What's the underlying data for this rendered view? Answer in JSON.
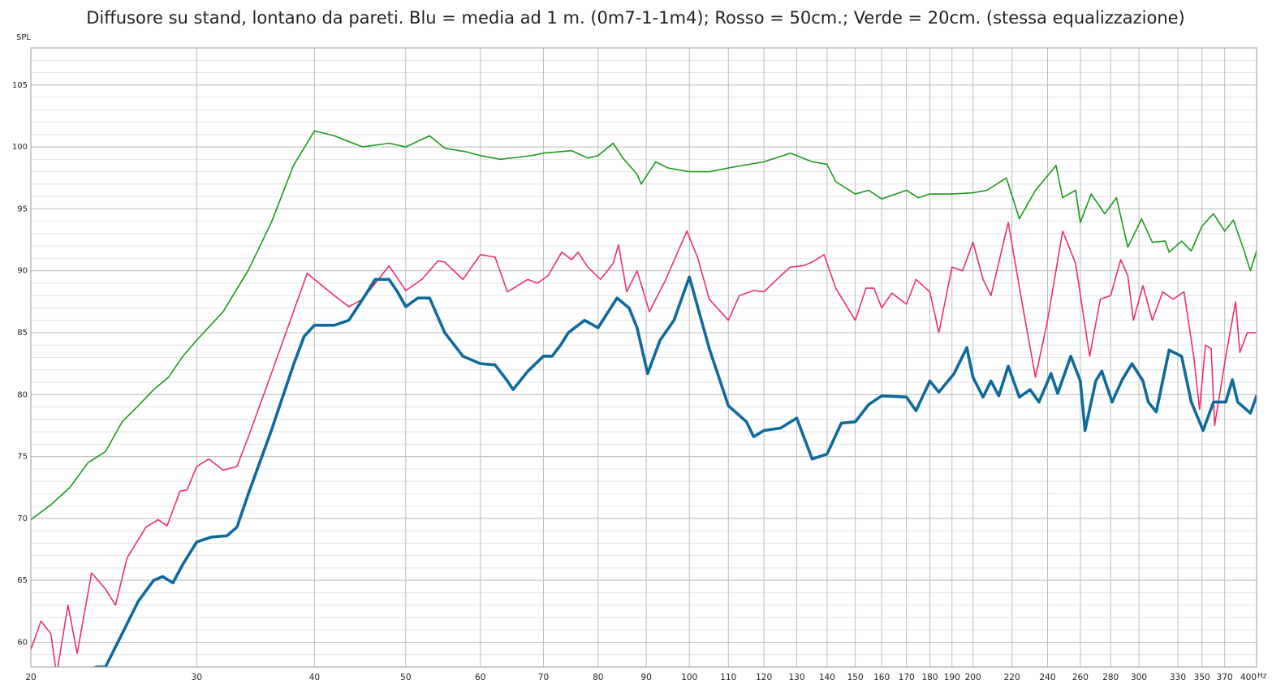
{
  "chart_data": {
    "type": "line",
    "title": "Diffusore su stand, lontano da pareti. Blu = media ad 1 m. (0m7-1-1m4); Rosso = 50cm.; Verde = 20cm. (stessa equalizzazione)",
    "y_label": "SPL",
    "x_unit": "Hz",
    "x_scale": "log",
    "grid": true,
    "xlim": [
      20,
      400
    ],
    "ylim": [
      58,
      108
    ],
    "yticks": [
      60,
      65,
      70,
      75,
      80,
      85,
      90,
      95,
      100,
      105
    ],
    "xticks": [
      20,
      30,
      40,
      50,
      60,
      70,
      80,
      90,
      100,
      110,
      120,
      130,
      140,
      150,
      160,
      170,
      180,
      190,
      200,
      220,
      240,
      260,
      280,
      300,
      330,
      350,
      370,
      400
    ],
    "series": [
      {
        "color": "#1a9a1a",
        "line_width": 1.6,
        "x": [
          20,
          21,
          22,
          23,
          24,
          25,
          26,
          27,
          28,
          29,
          30,
          32,
          34,
          36,
          38,
          40,
          42,
          45,
          48,
          50,
          53,
          55,
          58,
          60,
          63,
          68,
          70,
          75,
          78,
          80,
          83,
          85,
          88,
          88.9,
          92.1,
          94.9,
          100,
          105,
          110,
          120,
          128,
          135,
          140,
          143,
          150,
          155,
          160,
          170,
          175,
          180,
          190,
          200,
          207,
          217,
          224,
          233,
          245,
          249,
          257,
          260,
          267,
          276,
          284,
          292,
          302,
          310,
          320,
          323,
          333,
          341,
          350,
          360,
          370,
          378,
          388,
          394,
          400
        ],
        "values": [
          69.9,
          71.1,
          72.5,
          74.5,
          75.4,
          77.8,
          79.1,
          80.4,
          81.4,
          83.1,
          84.4,
          86.7,
          90.0,
          93.9,
          98.5,
          101.3,
          100.9,
          100.0,
          100.3,
          100.0,
          100.9,
          99.9,
          99.6,
          99.3,
          99.0,
          99.3,
          99.5,
          99.7,
          99.1,
          99.3,
          100.3,
          99.1,
          97.8,
          97.0,
          98.8,
          98.3,
          98.0,
          98.0,
          98.3,
          98.8,
          99.5,
          98.8,
          98.6,
          97.2,
          96.2,
          96.5,
          95.8,
          96.5,
          95.9,
          96.2,
          96.2,
          96.3,
          96.5,
          97.5,
          94.2,
          96.5,
          98.5,
          95.9,
          96.5,
          93.9,
          96.2,
          94.6,
          95.9,
          91.9,
          94.2,
          92.3,
          92.4,
          91.5,
          92.4,
          91.6,
          93.6,
          94.6,
          93.2,
          94.1,
          91.6,
          90.0,
          91.6
        ]
      },
      {
        "color": "#ef2f66",
        "line_width": 1.6,
        "x": [
          20,
          20.5,
          21.0,
          21.3,
          21.9,
          22.4,
          23.2,
          24,
          24.6,
          25.3,
          26.5,
          27.3,
          27.9,
          28.8,
          29.3,
          30,
          30.9,
          32,
          33.1,
          34,
          36,
          38,
          39.3,
          40,
          42,
          43.5,
          45,
          48,
          50,
          52,
          54.1,
          55,
          57.5,
          60,
          62.2,
          64.1,
          67.4,
          69.0,
          70.8,
          73.2,
          75,
          76.2,
          78,
          80.5,
          83,
          84.1,
          85.8,
          88,
          90.7,
          94.4,
          99.4,
          102,
          105,
          110,
          113,
          117,
          120,
          125,
          128,
          132,
          135,
          139,
          143,
          150,
          154,
          157,
          160,
          164,
          170,
          174,
          180,
          184,
          190,
          195,
          200,
          205,
          209,
          218,
          226,
          233,
          240,
          249,
          257,
          266,
          273,
          280,
          287,
          292,
          296,
          303,
          310,
          318,
          326,
          335,
          343,
          348,
          353,
          358,
          361,
          371,
          380,
          384,
          391,
          400
        ],
        "values": [
          59.4,
          61.7,
          60.7,
          57.4,
          63.0,
          59.1,
          65.6,
          64.3,
          63.0,
          66.8,
          69.3,
          69.9,
          69.4,
          72.2,
          72.3,
          74.2,
          74.8,
          73.9,
          74.2,
          76.5,
          81.7,
          86.7,
          89.8,
          89.3,
          88.0,
          87.1,
          87.7,
          90.4,
          88.4,
          89.3,
          90.8,
          90.7,
          89.3,
          91.3,
          91.1,
          88.3,
          89.3,
          89.0,
          89.6,
          91.5,
          90.9,
          91.5,
          90.3,
          89.3,
          90.6,
          92.1,
          88.3,
          90.0,
          86.7,
          89.3,
          93.2,
          91.1,
          87.7,
          86.0,
          88.0,
          88.4,
          88.3,
          89.6,
          90.3,
          90.4,
          90.7,
          91.3,
          88.6,
          86.0,
          88.6,
          88.6,
          87.0,
          88.2,
          87.3,
          89.3,
          88.3,
          85.0,
          90.3,
          90.0,
          92.3,
          89.3,
          88.0,
          93.9,
          87.0,
          81.4,
          86.0,
          93.2,
          90.6,
          83.1,
          87.7,
          88.0,
          90.9,
          89.6,
          86.0,
          88.8,
          86.0,
          88.3,
          87.7,
          88.3,
          83.1,
          78.8,
          84.0,
          83.7,
          77.5,
          83.1,
          87.5,
          83.4,
          85.0,
          85.0
        ]
      },
      {
        "color": "#0e6a9c",
        "line_width": 3.6,
        "x": [
          23,
          23.5,
          24,
          25,
          26,
          27,
          27.6,
          28.3,
          29,
          30,
          31.1,
          32.3,
          33.1,
          34,
          36,
          38,
          39.0,
          40,
          42,
          43.5,
          45,
          46.4,
          48,
          49.0,
          50,
          51.5,
          53,
          55,
          57.5,
          60,
          62.2,
          64.1,
          65.0,
          67.4,
          70,
          71.5,
          73,
          74.4,
          77.4,
          80,
          83.8,
          86.3,
          88,
          90.3,
          93.1,
          96.3,
          100,
          105,
          110,
          115,
          117,
          120,
          125,
          130,
          135,
          140,
          145,
          150,
          155,
          160,
          170,
          174,
          180,
          184,
          191,
          197,
          200,
          205,
          209,
          213,
          218,
          224,
          230,
          235,
          242,
          246,
          254,
          260,
          263,
          270,
          274,
          281,
          288,
          295,
          303,
          307,
          313,
          323,
          333,
          341,
          351,
          360,
          371,
          377,
          382,
          394,
          400
        ],
        "values": [
          57.8,
          58.0,
          58.0,
          60.7,
          63.3,
          65.0,
          65.3,
          64.8,
          66.3,
          68.1,
          68.5,
          68.6,
          69.3,
          71.9,
          77.1,
          82.4,
          84.7,
          85.6,
          85.6,
          86.0,
          87.7,
          89.3,
          89.3,
          88.3,
          87.1,
          87.8,
          87.8,
          85.0,
          83.1,
          82.5,
          82.4,
          81.1,
          80.4,
          81.9,
          83.1,
          83.1,
          84.0,
          85.0,
          86.0,
          85.4,
          87.8,
          87.0,
          85.4,
          81.7,
          84.4,
          86.0,
          89.5,
          83.7,
          79.1,
          77.8,
          76.6,
          77.1,
          77.3,
          78.1,
          74.8,
          75.2,
          77.7,
          77.8,
          79.2,
          79.9,
          79.8,
          78.7,
          81.1,
          80.2,
          81.7,
          83.8,
          81.4,
          79.8,
          81.1,
          79.9,
          82.3,
          79.8,
          80.4,
          79.4,
          81.7,
          80.1,
          83.1,
          81.1,
          77.1,
          81.1,
          81.9,
          79.4,
          81.2,
          82.5,
          81.1,
          79.4,
          78.6,
          83.6,
          83.1,
          79.4,
          77.1,
          79.4,
          79.4,
          81.2,
          79.4,
          78.5,
          79.9
        ]
      }
    ]
  }
}
